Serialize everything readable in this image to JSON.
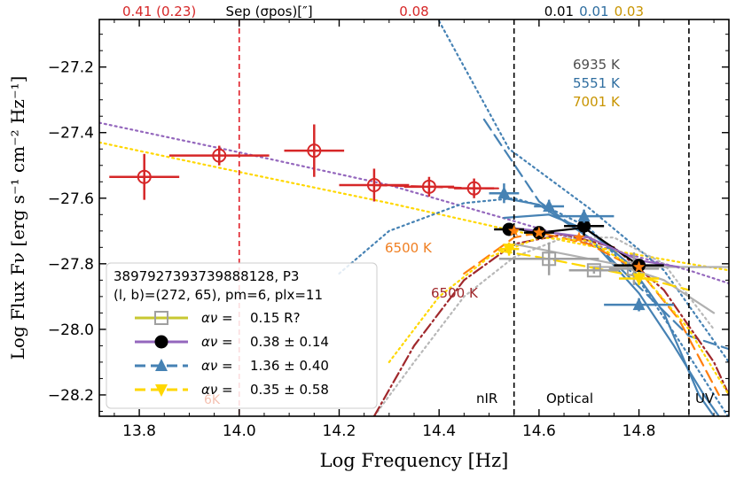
{
  "chart_data": {
    "type": "scatter",
    "title": "",
    "xlabel": "Log Frequency [Hz]",
    "ylabel": "Log Flux Fν [erg s⁻¹ cm⁻² Hz⁻¹]",
    "xlim": [
      13.72,
      14.98
    ],
    "ylim": [
      -28.265,
      -27.055
    ],
    "xticks": [
      13.8,
      14.0,
      14.2,
      14.4,
      14.6,
      14.8
    ],
    "xtick_labels": [
      "13.8",
      "14.0",
      "14.2",
      "14.4",
      "14.6",
      "14.8"
    ],
    "yticks": [
      -27.2,
      -27.4,
      -27.6,
      -27.8,
      -28.0,
      -28.2
    ],
    "ytick_labels": [
      "−27.2",
      "−27.4",
      "−27.6",
      "−27.8",
      "−28.0",
      "−28.2"
    ],
    "top_labels": [
      {
        "text": "0.41 (0.23)",
        "color": "#d62728",
        "x": 13.84
      },
      {
        "text": "Sep (σpos)[″]",
        "color": "#000000",
        "x": 14.06
      },
      {
        "text": "0.08",
        "color": "#d62728",
        "x": 14.35
      },
      {
        "text": "0.01",
        "color": "#000000",
        "x": 14.64
      },
      {
        "text": "0.01",
        "color": "#2f6ea0",
        "x": 14.71
      },
      {
        "text": "0.03",
        "color": "#c89400",
        "x": 14.78
      }
    ],
    "vlines": [
      {
        "x": 14.0,
        "color": "#e0202a",
        "label": ""
      },
      {
        "x": 14.55,
        "color": "#000000",
        "label": "nIR"
      },
      {
        "x": 14.9,
        "color": "#000000",
        "label": "UV"
      }
    ],
    "band_labels": {
      "nir": "nIR",
      "optical": "Optical",
      "uv": "UV"
    },
    "temperature_labels": [
      {
        "text": "6935 K",
        "color": "#4d4d4d"
      },
      {
        "text": "5551 K",
        "color": "#2f6ea0"
      },
      {
        "text": "7001 K",
        "color": "#c89400"
      }
    ],
    "bb_labels": [
      {
        "text": "6500 K",
        "color": "#f07f22",
        "x": 14.38,
        "y": -27.765
      },
      {
        "text": "6500 K",
        "color": "#a0282c",
        "x": 14.42,
        "y": -27.92
      }
    ],
    "series": [
      {
        "name": "wise",
        "color": "#d62728",
        "marker": "circle-open",
        "points": [
          {
            "x": 13.81,
            "y": -27.535,
            "xerr": 0.07,
            "yerr": 0.07
          },
          {
            "x": 13.96,
            "y": -27.47,
            "xerr": 0.1,
            "yerr": 0.03
          },
          {
            "x": 14.15,
            "y": -27.455,
            "xerr": 0.06,
            "yerr": 0.08
          },
          {
            "x": 14.27,
            "y": -27.56,
            "xerr": 0.07,
            "yerr": 0.05
          },
          {
            "x": 14.38,
            "y": -27.565,
            "xerr": 0.05,
            "yerr": 0.03
          },
          {
            "x": 14.47,
            "y": -27.57,
            "xerr": 0.04,
            "yerr": 0.03
          }
        ]
      },
      {
        "name": "gray",
        "color": "#a0a0a0",
        "marker": "square-open",
        "points": [
          {
            "x": 14.62,
            "y": -27.785,
            "xerr": 0.1,
            "yerr": 0.05
          },
          {
            "x": 14.71,
            "y": -27.82,
            "xerr": 0.05,
            "yerr": 0.01
          },
          {
            "x": 14.79,
            "y": -27.815,
            "xerr": 0.05,
            "yerr": 0.05
          }
        ]
      },
      {
        "name": "black",
        "color": "#000000",
        "marker": "circle",
        "points": [
          {
            "x": 14.54,
            "y": -27.695,
            "xerr": 0.03,
            "yerr": 0.01
          },
          {
            "x": 14.6,
            "y": -27.705,
            "xerr": 0.03,
            "yerr": 0.01
          },
          {
            "x": 14.69,
            "y": -27.685,
            "xerr": 0.04,
            "yerr": 0.03
          },
          {
            "x": 14.8,
            "y": -27.805,
            "xerr": 0.05,
            "yerr": 0.02
          }
        ]
      },
      {
        "name": "blue",
        "color": "#4682b4",
        "marker": "triangle-up",
        "points": [
          {
            "x": 14.53,
            "y": -27.585,
            "xerr": 0.03,
            "yerr": 0.03
          },
          {
            "x": 14.62,
            "y": -27.625,
            "xerr": 0.03,
            "yerr": 0.02
          },
          {
            "x": 14.69,
            "y": -27.655,
            "xerr": 0.06,
            "yerr": 0.02
          },
          {
            "x": 14.8,
            "y": -27.925,
            "xerr": 0.07,
            "yerr": 0.02
          }
        ]
      },
      {
        "name": "yellow",
        "color": "#ffd700",
        "marker": "triangle-down",
        "points": [
          {
            "x": 14.54,
            "y": -27.755,
            "xerr": 0.02,
            "yerr": 0.02
          },
          {
            "x": 14.8,
            "y": -27.845,
            "xerr": 0.04,
            "yerr": 0.02
          }
        ]
      },
      {
        "name": "orange",
        "color": "#ff7f0e",
        "marker": "star",
        "points": [
          {
            "x": 14.55,
            "y": -27.7,
            "xerr": 0,
            "yerr": 0
          },
          {
            "x": 14.6,
            "y": -27.705,
            "xerr": 0,
            "yerr": 0
          },
          {
            "x": 14.68,
            "y": -27.72,
            "xerr": 0,
            "yerr": 0
          },
          {
            "x": 14.8,
            "y": -27.81,
            "xerr": 0,
            "yerr": 0
          }
        ]
      }
    ],
    "curves": [
      {
        "name": "purple-dotted",
        "color": "#9467bd",
        "style": "dotted",
        "points": [
          [
            13.72,
            -27.37
          ],
          [
            14.0,
            -27.46
          ],
          [
            14.3,
            -27.56
          ],
          [
            14.55,
            -27.67
          ],
          [
            14.75,
            -27.76
          ],
          [
            14.9,
            -27.82
          ],
          [
            14.98,
            -27.86
          ]
        ]
      },
      {
        "name": "yellow-dotted",
        "color": "#ffd700",
        "style": "dotted",
        "points": [
          [
            13.72,
            -27.43
          ],
          [
            14.0,
            -27.52
          ],
          [
            14.3,
            -27.615
          ],
          [
            14.55,
            -27.7
          ],
          [
            14.75,
            -27.76
          ],
          [
            14.9,
            -27.8
          ],
          [
            14.98,
            -27.82
          ]
        ]
      },
      {
        "name": "blue-steep-dotted",
        "color": "#4682b4",
        "style": "dotted",
        "points": [
          [
            14.4,
            -27.06
          ],
          [
            14.54,
            -27.45
          ],
          [
            14.7,
            -27.63
          ],
          [
            14.85,
            -27.82
          ],
          [
            14.98,
            -28.1
          ]
        ]
      },
      {
        "name": "blue-power-dashed",
        "color": "#4682b4",
        "style": "dashed",
        "points": [
          [
            14.49,
            -27.36
          ],
          [
            14.6,
            -27.61
          ],
          [
            14.7,
            -27.72
          ],
          [
            14.9,
            -28.02
          ],
          [
            14.98,
            -28.06
          ]
        ]
      },
      {
        "name": "blue-bb-dotted",
        "color": "#4682b4",
        "style": "dotted",
        "points": [
          [
            14.2,
            -27.83
          ],
          [
            14.3,
            -27.7
          ],
          [
            14.45,
            -27.615
          ],
          [
            14.55,
            -27.6
          ],
          [
            14.62,
            -27.63
          ],
          [
            14.7,
            -27.69
          ],
          [
            14.8,
            -27.85
          ],
          [
            14.9,
            -28.08
          ],
          [
            14.98,
            -28.27
          ]
        ]
      },
      {
        "name": "blue-bb-solid",
        "color": "#4682b4",
        "style": "solid",
        "points": [
          [
            14.53,
            -27.6
          ],
          [
            14.6,
            -27.62
          ],
          [
            14.7,
            -27.72
          ],
          [
            14.8,
            -27.89
          ],
          [
            14.87,
            -28.05
          ],
          [
            14.93,
            -28.2
          ],
          [
            14.96,
            -28.265
          ]
        ]
      },
      {
        "name": "blue-bb-solid-2",
        "color": "#4682b4",
        "style": "solid",
        "points": [
          [
            14.53,
            -27.66
          ],
          [
            14.62,
            -27.65
          ],
          [
            14.7,
            -27.7
          ],
          [
            14.78,
            -27.8
          ],
          [
            14.85,
            -27.95
          ],
          [
            14.92,
            -28.2
          ],
          [
            14.95,
            -28.265
          ]
        ]
      },
      {
        "name": "gray-dotted-rising",
        "color": "#b8b8b8",
        "style": "dotted",
        "points": [
          [
            14.27,
            -28.265
          ],
          [
            14.35,
            -28.1
          ],
          [
            14.45,
            -27.9
          ],
          [
            14.55,
            -27.78
          ],
          [
            14.65,
            -27.72
          ],
          [
            14.75,
            -27.72
          ],
          [
            14.85,
            -27.8
          ],
          [
            14.95,
            -28.0
          ]
        ]
      },
      {
        "name": "brown-dashdot",
        "color": "#a0282c",
        "style": "dashdot",
        "points": [
          [
            14.27,
            -28.265
          ],
          [
            14.35,
            -28.05
          ],
          [
            14.45,
            -27.85
          ],
          [
            14.55,
            -27.74
          ],
          [
            14.65,
            -27.71
          ],
          [
            14.75,
            -27.75
          ],
          [
            14.85,
            -27.88
          ],
          [
            14.95,
            -28.1
          ],
          [
            14.98,
            -28.2
          ]
        ]
      },
      {
        "name": "orange-dashed",
        "color": "#ff7f0e",
        "style": "dashed",
        "points": [
          [
            14.45,
            -27.83
          ],
          [
            14.55,
            -27.72
          ],
          [
            14.6,
            -27.705
          ],
          [
            14.7,
            -27.74
          ],
          [
            14.8,
            -27.82
          ],
          [
            14.88,
            -27.97
          ],
          [
            14.96,
            -28.2
          ]
        ]
      },
      {
        "name": "yellow-dotted-rising",
        "color": "#ffd700",
        "style": "dotted",
        "points": [
          [
            14.3,
            -28.1
          ],
          [
            14.4,
            -27.9
          ],
          [
            14.5,
            -27.78
          ],
          [
            14.6,
            -27.72
          ],
          [
            14.7,
            -27.73
          ],
          [
            14.8,
            -27.82
          ],
          [
            14.9,
            -28.0
          ],
          [
            14.98,
            -28.2
          ]
        ]
      },
      {
        "name": "gray-solid",
        "color": "#b0b0b0",
        "style": "solid",
        "points": [
          [
            14.55,
            -27.74
          ],
          [
            14.65,
            -27.77
          ],
          [
            14.75,
            -27.8
          ],
          [
            14.85,
            -27.85
          ],
          [
            14.95,
            -27.95
          ]
        ]
      },
      {
        "name": "gray-flat",
        "color": "#b0b0b0",
        "style": "solid",
        "points": [
          [
            14.7,
            -27.81
          ],
          [
            14.98,
            -27.81
          ]
        ]
      },
      {
        "name": "yellow-dashed",
        "color": "#ffd700",
        "style": "dashed",
        "points": [
          [
            14.52,
            -27.76
          ],
          [
            14.6,
            -27.78
          ],
          [
            14.7,
            -27.81
          ],
          [
            14.8,
            -27.84
          ],
          [
            14.9,
            -27.88
          ]
        ]
      },
      {
        "name": "black-line",
        "color": "#000000",
        "style": "solid",
        "points": [
          [
            14.54,
            -27.69
          ],
          [
            14.6,
            -27.705
          ],
          [
            14.69,
            -27.69
          ],
          [
            14.8,
            -27.805
          ]
        ]
      },
      {
        "name": "purple-line",
        "color": "#9467bd",
        "style": "solid",
        "points": [
          [
            14.54,
            -27.69
          ],
          [
            14.6,
            -27.7
          ],
          [
            14.7,
            -27.72
          ],
          [
            14.8,
            -27.79
          ],
          [
            14.88,
            -27.81
          ]
        ]
      },
      {
        "name": "red-dashed",
        "color": "#d62728",
        "style": "dashed",
        "points": [
          [
            14.27,
            -27.56
          ],
          [
            14.38,
            -27.565
          ],
          [
            14.47,
            -27.57
          ],
          [
            14.52,
            -27.57
          ]
        ]
      }
    ],
    "legend": {
      "title_line1": "3897927393739888128, P3",
      "title_line2": "(l, b)=(272, 65), pm=6, plx=11",
      "entries": [
        {
          "name": "gray",
          "label_alpha": "αν = ",
          "label_value": "0.15   R?",
          "color": "#c8c832",
          "marker_color": "#a0a0a0",
          "marker": "square-open",
          "dashed": false
        },
        {
          "name": "black",
          "label_alpha": "αν = ",
          "label_value": "0.38 ± 0.14",
          "color": "#9467bd",
          "marker_color": "#000000",
          "marker": "circle",
          "dashed": false
        },
        {
          "name": "blue",
          "label_alpha": "αν = ",
          "label_value": "1.36 ± 0.40",
          "color": "#4682b4",
          "marker_color": "#4682b4",
          "marker": "triangle-up",
          "dashed": true
        },
        {
          "name": "yellow",
          "label_alpha": "αν = ",
          "label_value": "0.35 ± 0.58",
          "color": "#ffd700",
          "marker_color": "#ffd700",
          "marker": "triangle-down",
          "dashed": true
        }
      ],
      "hidden_text": "6K"
    }
  }
}
